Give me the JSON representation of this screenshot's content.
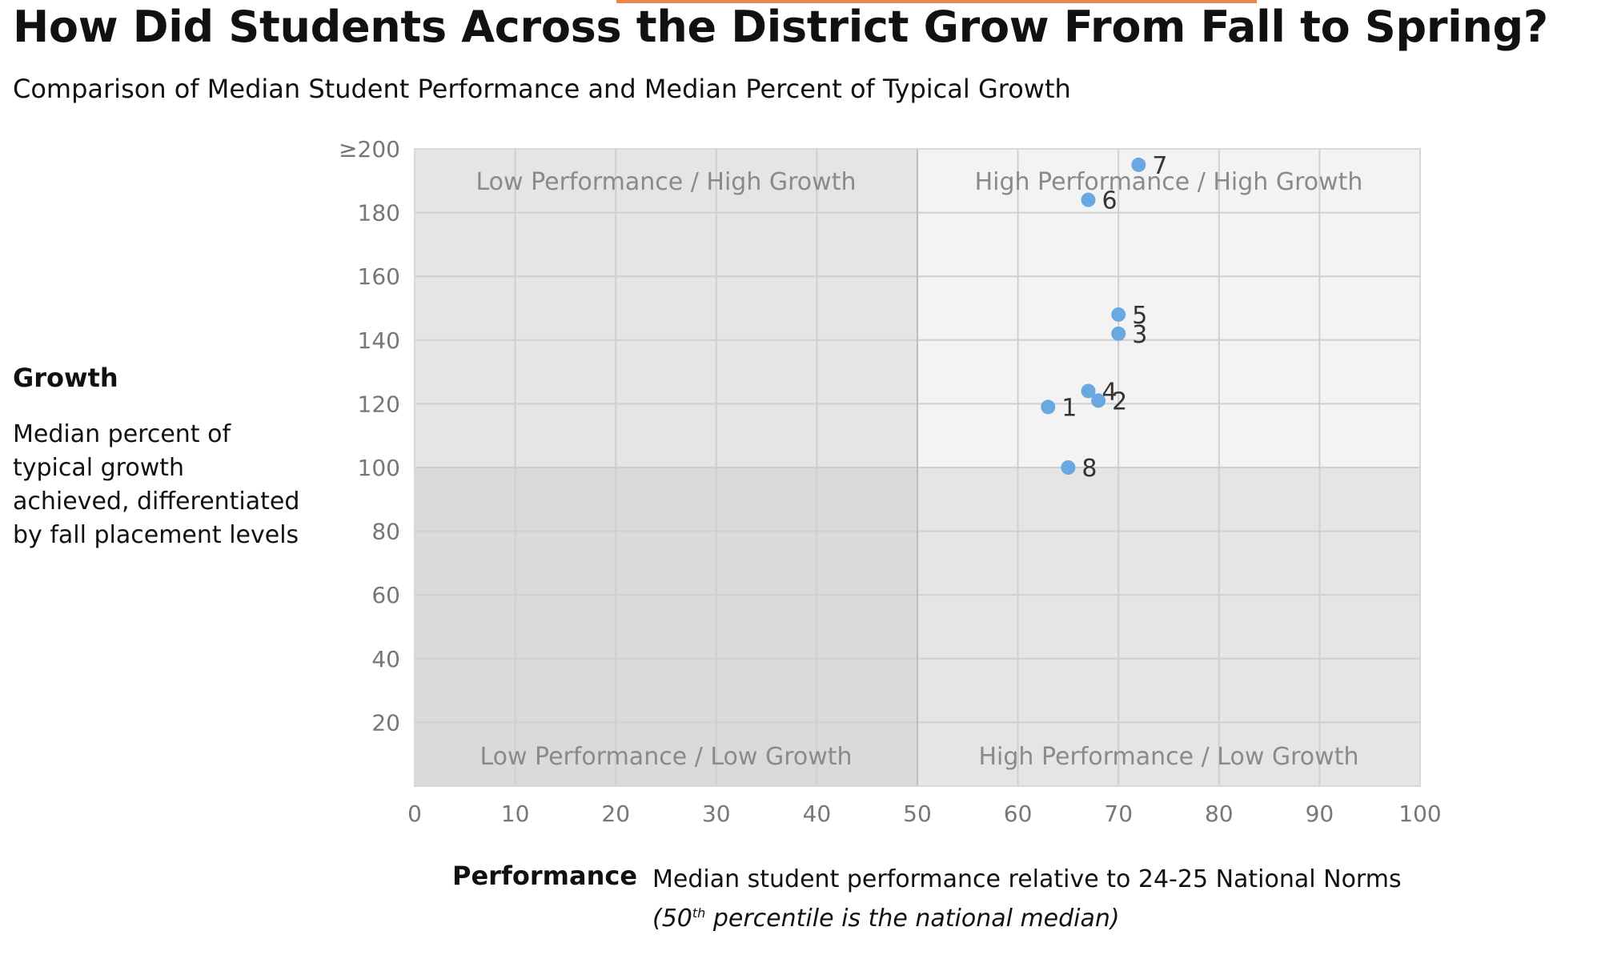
{
  "title": "How Did Students Across the District Grow From Fall to Spring?",
  "subtitle": "Comparison of Median Student Performance and Median Percent of Typical Growth",
  "growth_axis": {
    "heading": "Growth",
    "description": "Median percent of typical growth achieved, differentiated by fall placement levels"
  },
  "performance_axis": {
    "heading": "Performance",
    "description": "Median student performance relative to 24-25 National Norms",
    "note_prefix": "(50",
    "note_sup": "th",
    "note_suffix": " percentile is the national median)"
  },
  "colors": {
    "point": "#69a8e0",
    "accent": "#e9874f",
    "quad_low_high": "#e5e5e5",
    "quad_high_high": "#f3f3f3",
    "quad_low_low": "#dadada",
    "quad_high_low": "#e5e5e5",
    "grid": "#cfcfcf"
  },
  "chart_data": {
    "type": "scatter",
    "xlim": [
      0,
      100
    ],
    "ylim": [
      0,
      200
    ],
    "x_ticks": [
      "0",
      "10",
      "20",
      "30",
      "40",
      "50",
      "60",
      "70",
      "80",
      "90",
      "100"
    ],
    "y_ticks": [
      {
        "value": 20,
        "label": "20"
      },
      {
        "value": 40,
        "label": "40"
      },
      {
        "value": 60,
        "label": "60"
      },
      {
        "value": 80,
        "label": "80"
      },
      {
        "value": 100,
        "label": "100"
      },
      {
        "value": 120,
        "label": "120"
      },
      {
        "value": 140,
        "label": "140"
      },
      {
        "value": 160,
        "label": "160"
      },
      {
        "value": 180,
        "label": "180"
      },
      {
        "value": 200,
        "label": "≥200"
      }
    ],
    "x_split": 50,
    "y_split": 100,
    "grid": true,
    "quadrant_labels": {
      "top_left": "Low Performance / High Growth",
      "top_right": "High Performance / High Growth",
      "bottom_left": "Low Performance / Low Growth",
      "bottom_right": "High Performance / Low Growth"
    },
    "points": [
      {
        "label": "1",
        "x": 63,
        "y": 119
      },
      {
        "label": "2",
        "x": 68,
        "y": 121
      },
      {
        "label": "3",
        "x": 70,
        "y": 142
      },
      {
        "label": "4",
        "x": 67,
        "y": 124
      },
      {
        "label": "5",
        "x": 70,
        "y": 148
      },
      {
        "label": "6",
        "x": 67,
        "y": 184
      },
      {
        "label": "7",
        "x": 72,
        "y": 195
      },
      {
        "label": "8",
        "x": 65,
        "y": 100
      }
    ]
  }
}
